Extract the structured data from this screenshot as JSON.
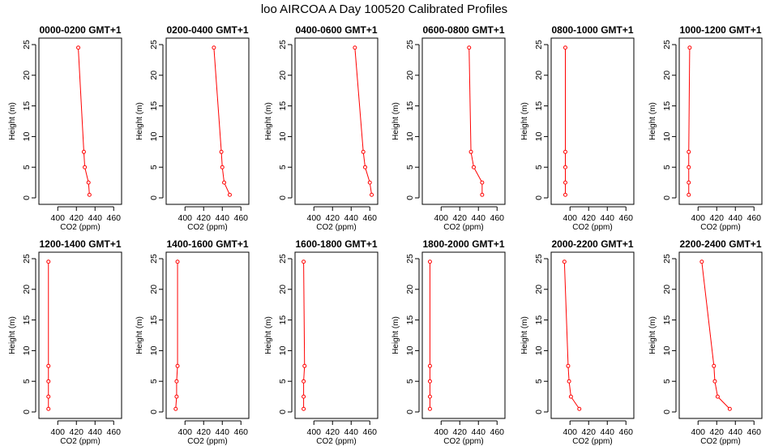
{
  "title": "loo AIRCOA A  Day 100520  Calibrated Profiles",
  "chart_data": {
    "type": "line",
    "xlabel": "CO2 (ppm)",
    "ylabel": "Height (m)",
    "xlim": [
      385,
      465
    ],
    "ylim": [
      0,
      25
    ],
    "xticks": [
      400,
      420,
      440,
      460
    ],
    "yticks": [
      0,
      5,
      10,
      15,
      20,
      25
    ],
    "color": "#ff0000",
    "panels": [
      {
        "title": "0000-0200  GMT+1",
        "points": [
          {
            "x": 422,
            "y": 24.5
          },
          {
            "x": 428,
            "y": 7.5
          },
          {
            "x": 429,
            "y": 5.0
          },
          {
            "x": 433,
            "y": 2.5
          },
          {
            "x": 434,
            "y": 0.5
          }
        ]
      },
      {
        "title": "0200-0400  GMT+1",
        "points": [
          {
            "x": 431,
            "y": 24.5
          },
          {
            "x": 439,
            "y": 7.5
          },
          {
            "x": 440,
            "y": 5.0
          },
          {
            "x": 442,
            "y": 2.5
          },
          {
            "x": 448,
            "y": 0.5
          }
        ]
      },
      {
        "title": "0400-0600  GMT+1",
        "points": [
          {
            "x": 444,
            "y": 24.5
          },
          {
            "x": 453,
            "y": 7.5
          },
          {
            "x": 455,
            "y": 5.0
          },
          {
            "x": 460,
            "y": 2.5
          },
          {
            "x": 462,
            "y": 0.5
          }
        ]
      },
      {
        "title": "0600-0800  GMT+1",
        "points": [
          {
            "x": 430,
            "y": 24.5
          },
          {
            "x": 432,
            "y": 7.5
          },
          {
            "x": 435,
            "y": 5.0
          },
          {
            "x": 444,
            "y": 2.5
          },
          {
            "x": 444,
            "y": 0.5
          }
        ]
      },
      {
        "title": "0800-1000  GMT+1",
        "points": [
          {
            "x": 395,
            "y": 24.5
          },
          {
            "x": 395,
            "y": 7.5
          },
          {
            "x": 395,
            "y": 5.0
          },
          {
            "x": 395,
            "y": 2.5
          },
          {
            "x": 395,
            "y": 0.5
          }
        ]
      },
      {
        "title": "1000-1200  GMT+1",
        "points": [
          {
            "x": 391,
            "y": 24.5
          },
          {
            "x": 390,
            "y": 7.5
          },
          {
            "x": 390,
            "y": 5.0
          },
          {
            "x": 390,
            "y": 2.5
          },
          {
            "x": 390,
            "y": 0.5
          }
        ]
      },
      {
        "title": "1200-1400  GMT+1",
        "points": [
          {
            "x": 390,
            "y": 24.5
          },
          {
            "x": 390,
            "y": 7.5
          },
          {
            "x": 390,
            "y": 5.0
          },
          {
            "x": 390,
            "y": 2.5
          },
          {
            "x": 390,
            "y": 0.5
          }
        ]
      },
      {
        "title": "1400-1600  GMT+1",
        "points": [
          {
            "x": 392,
            "y": 24.5
          },
          {
            "x": 392,
            "y": 7.5
          },
          {
            "x": 391,
            "y": 5.0
          },
          {
            "x": 391,
            "y": 2.5
          },
          {
            "x": 390,
            "y": 0.5
          }
        ]
      },
      {
        "title": "1600-1800  GMT+1",
        "points": [
          {
            "x": 389,
            "y": 24.5
          },
          {
            "x": 390,
            "y": 7.5
          },
          {
            "x": 389,
            "y": 5.0
          },
          {
            "x": 389,
            "y": 2.5
          },
          {
            "x": 389,
            "y": 0.5
          }
        ]
      },
      {
        "title": "1800-2000  GMT+1",
        "points": [
          {
            "x": 388,
            "y": 24.5
          },
          {
            "x": 388,
            "y": 7.5
          },
          {
            "x": 388,
            "y": 5.0
          },
          {
            "x": 388,
            "y": 2.5
          },
          {
            "x": 388,
            "y": 0.5
          }
        ]
      },
      {
        "title": "2000-2200  GMT+1",
        "points": [
          {
            "x": 394,
            "y": 24.5
          },
          {
            "x": 398,
            "y": 7.5
          },
          {
            "x": 399,
            "y": 5.0
          },
          {
            "x": 401,
            "y": 2.5
          },
          {
            "x": 410,
            "y": 0.5
          }
        ]
      },
      {
        "title": "2200-2400  GMT+1",
        "points": [
          {
            "x": 404,
            "y": 24.5
          },
          {
            "x": 417,
            "y": 7.5
          },
          {
            "x": 418,
            "y": 5.0
          },
          {
            "x": 421,
            "y": 2.5
          },
          {
            "x": 434,
            "y": 0.5
          }
        ]
      }
    ]
  }
}
